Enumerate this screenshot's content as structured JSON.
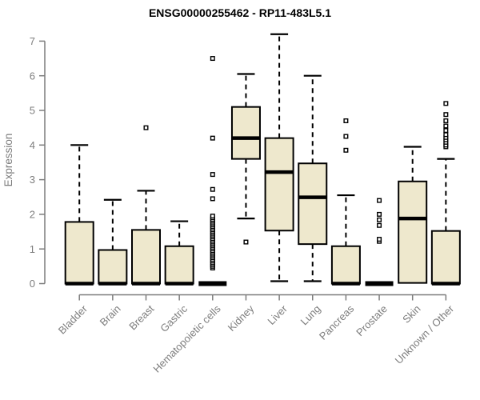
{
  "chart_data": {
    "type": "boxplot",
    "title": "ENSG00000255462 - RP11-483L5.1",
    "xlabel": "",
    "ylabel": "Expression",
    "ylim": [
      0,
      7
    ],
    "yticks": [
      0,
      1,
      2,
      3,
      4,
      5,
      6,
      7
    ],
    "grid": false,
    "legend": "none",
    "categories": [
      "Bladder",
      "Brain",
      "Breast",
      "Gastric",
      "Hematopoietic cells",
      "Kidney",
      "Liver",
      "Lung",
      "Pancreas",
      "Prostate",
      "Skin",
      "Unknown / Other"
    ],
    "boxes": [
      {
        "label": "Bladder",
        "q1": 0,
        "median": 0,
        "q3": 1.78,
        "whisker_low": 0,
        "whisker_high": 4.0,
        "outliers": []
      },
      {
        "label": "Brain",
        "q1": 0,
        "median": 0,
        "q3": 0.97,
        "whisker_low": 0,
        "whisker_high": 2.42,
        "outliers": []
      },
      {
        "label": "Breast",
        "q1": 0,
        "median": 0,
        "q3": 1.55,
        "whisker_low": 0,
        "whisker_high": 2.68,
        "outliers": [
          4.5
        ]
      },
      {
        "label": "Gastric",
        "q1": 0,
        "median": 0,
        "q3": 1.08,
        "whisker_low": 0,
        "whisker_high": 1.8,
        "outliers": []
      },
      {
        "label": "Hematopoietic cells",
        "q1": 0,
        "median": 0,
        "q3": 0,
        "whisker_low": 0,
        "whisker_high": 0,
        "outliers": [
          0.45,
          0.5,
          0.55,
          0.6,
          0.65,
          0.7,
          0.75,
          0.8,
          0.85,
          0.9,
          0.95,
          1.0,
          1.05,
          1.1,
          1.15,
          1.2,
          1.25,
          1.3,
          1.35,
          1.4,
          1.45,
          1.5,
          1.55,
          1.6,
          1.65,
          1.7,
          1.75,
          1.8,
          1.85,
          1.9,
          1.95,
          2.45,
          2.72,
          3.15,
          4.2,
          6.5
        ]
      },
      {
        "label": "Kidney",
        "q1": 3.6,
        "median": 4.2,
        "q3": 5.1,
        "whisker_low": 1.88,
        "whisker_high": 6.05,
        "outliers": [
          1.2
        ]
      },
      {
        "label": "Liver",
        "q1": 1.53,
        "median": 3.22,
        "q3": 4.2,
        "whisker_low": 0.07,
        "whisker_high": 7.2,
        "outliers": []
      },
      {
        "label": "Lung",
        "q1": 1.14,
        "median": 2.49,
        "q3": 3.47,
        "whisker_low": 0.07,
        "whisker_high": 6.0,
        "outliers": []
      },
      {
        "label": "Pancreas",
        "q1": 0,
        "median": 0,
        "q3": 1.08,
        "whisker_low": 0,
        "whisker_high": 2.55,
        "outliers": [
          3.85,
          4.25,
          4.7
        ]
      },
      {
        "label": "Prostate",
        "q1": 0,
        "median": 0,
        "q3": 0,
        "whisker_low": 0,
        "whisker_high": 0,
        "outliers": [
          1.22,
          1.28,
          1.68,
          1.84,
          2.0,
          2.4
        ]
      },
      {
        "label": "Skin",
        "q1": 0.02,
        "median": 1.88,
        "q3": 2.95,
        "whisker_low": 0.02,
        "whisker_high": 3.95,
        "outliers": []
      },
      {
        "label": "Unknown / Other",
        "q1": 0,
        "median": 0,
        "q3": 1.52,
        "whisker_low": 0,
        "whisker_high": 3.6,
        "outliers": [
          3.95,
          4.0,
          4.08,
          4.15,
          4.22,
          4.3,
          4.42,
          4.55,
          4.7,
          4.88,
          5.2
        ]
      }
    ],
    "colors": {
      "box_fill": "#EEE8CD",
      "box_stroke": "#000000",
      "median": "#000000",
      "whisker": "#000000",
      "outlier_stroke": "#000000",
      "outlier_fill": "#ffffff",
      "axis": "#7d7d7d",
      "title": "#000000",
      "background": "#ffffff"
    }
  }
}
